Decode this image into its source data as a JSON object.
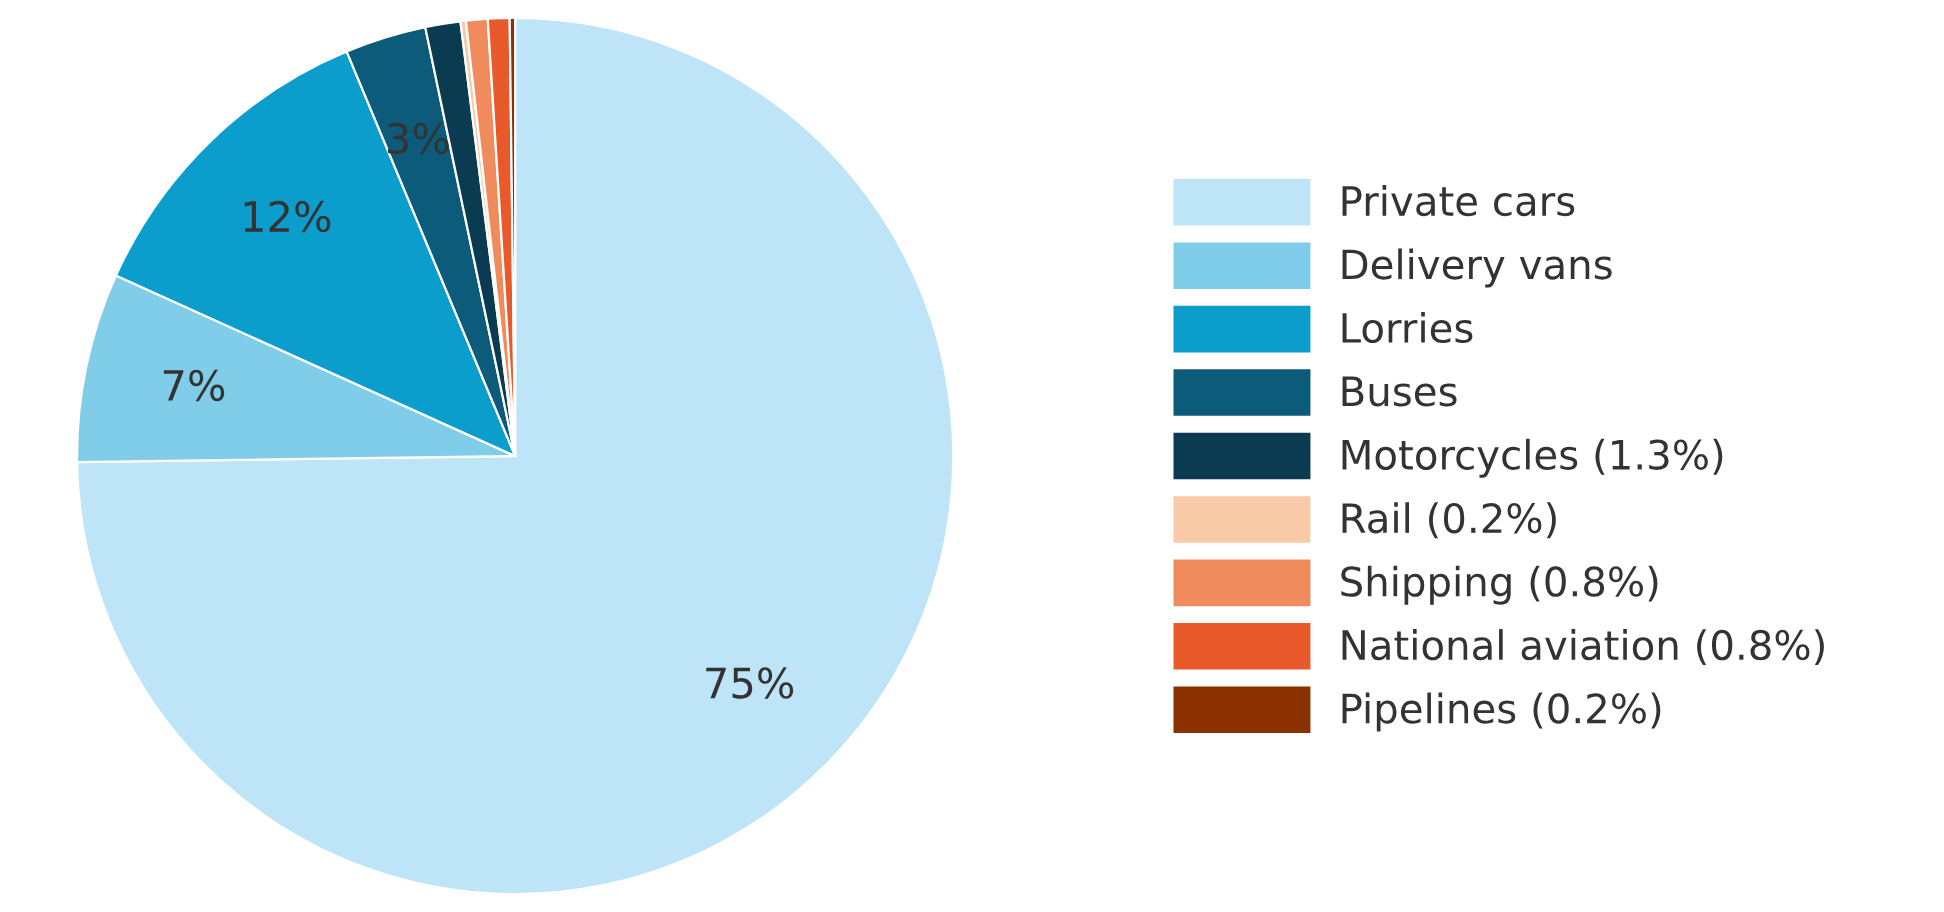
{
  "chart_data": {
    "type": "pie",
    "categories": [
      "Private cars",
      "Delivery vans",
      "Lorries",
      "Buses",
      "Motorcycles (1.3%)",
      "Rail (0.2%)",
      "Shipping (0.8%)",
      "National aviation (0.8%)",
      "Pipelines (0.2%)"
    ],
    "values": [
      75,
      7,
      12,
      3,
      1.3,
      0.2,
      0.8,
      0.8,
      0.2
    ],
    "colors": [
      "#bee4f8",
      "#80cdea",
      "#0b9dcc",
      "#0c5b7b",
      "#0a3b50",
      "#f9caa7",
      "#f08b5d",
      "#e85a2b",
      "#8b3100"
    ],
    "value_labels": [
      "75%",
      "7%",
      "12%",
      "3%",
      null,
      null,
      null,
      null,
      null
    ],
    "legend": "right"
  }
}
